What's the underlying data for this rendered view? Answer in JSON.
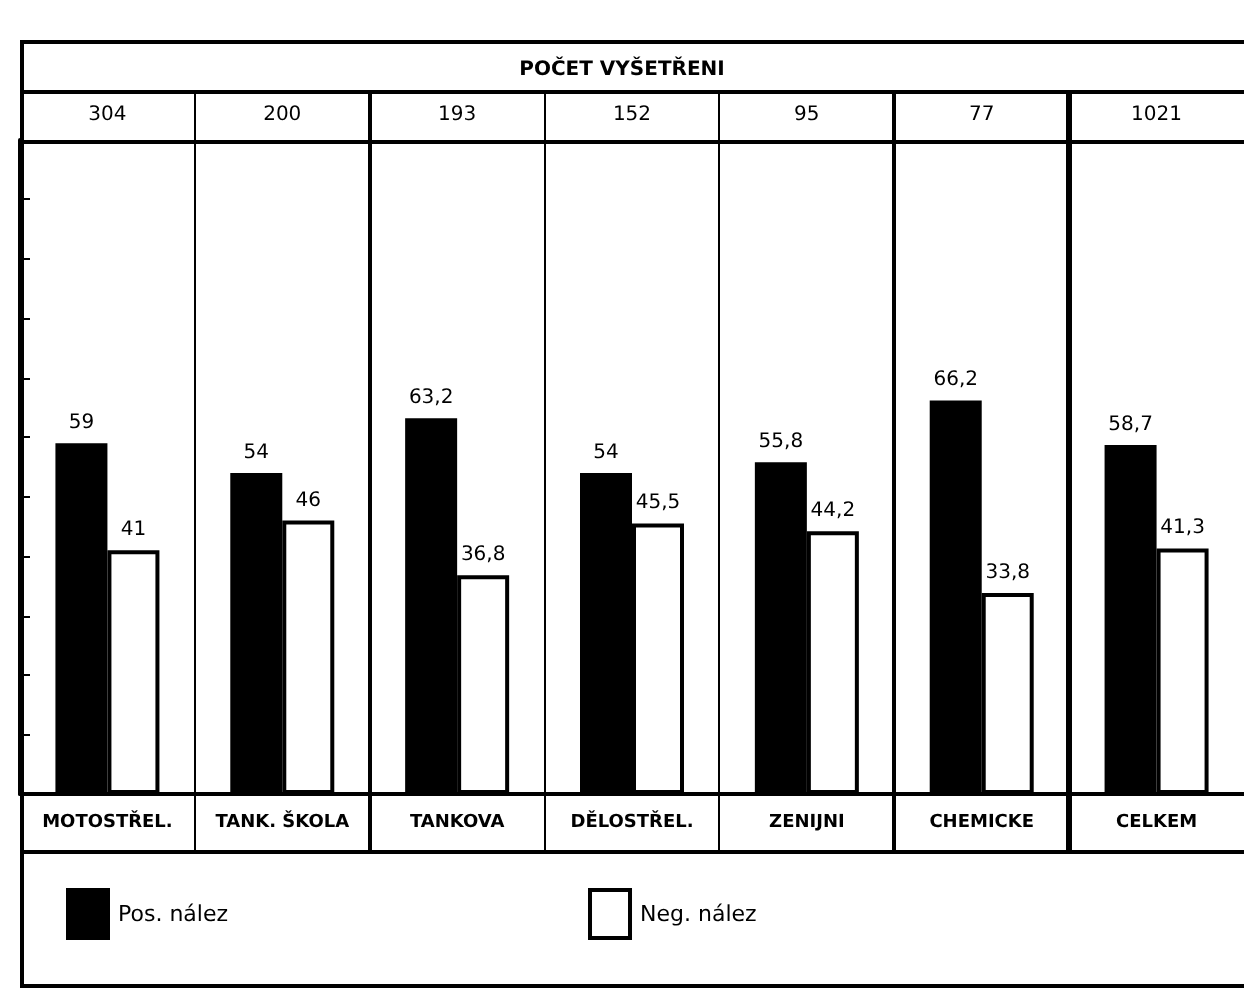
{
  "chart_data": {
    "type": "bar",
    "title": "POČET VYŠETŘENI",
    "categories": [
      "MOTOSTŘEL.",
      "TANK. ŠKOLA",
      "TANKOVA",
      "DĚLOSTŘEL.",
      "ZENIJNI",
      "CHEMICKE",
      "CELKEM"
    ],
    "series": [
      {
        "name": "Pos. nález",
        "color": "#000000",
        "values": [
          59,
          54,
          63.2,
          54,
          55.8,
          66.2,
          58.7
        ],
        "value_labels": [
          "59",
          "54",
          "63,2",
          "54",
          "55,8",
          "66,2",
          "58,7"
        ]
      },
      {
        "name": "Neg. nález",
        "color": "#ffffff",
        "values": [
          41,
          46,
          36.8,
          45.5,
          44.2,
          33.8,
          41.3
        ],
        "value_labels": [
          "41",
          "46",
          "36,8",
          "45,5",
          "44,2",
          "33,8",
          "41,3"
        ]
      }
    ],
    "annotations": [
      "304",
      "200",
      "193",
      "152",
      "95",
      "77",
      "1021"
    ],
    "ylim": [
      0,
      110
    ],
    "tick_labels": "x",
    "legend": "bottom left",
    "grid": false
  }
}
